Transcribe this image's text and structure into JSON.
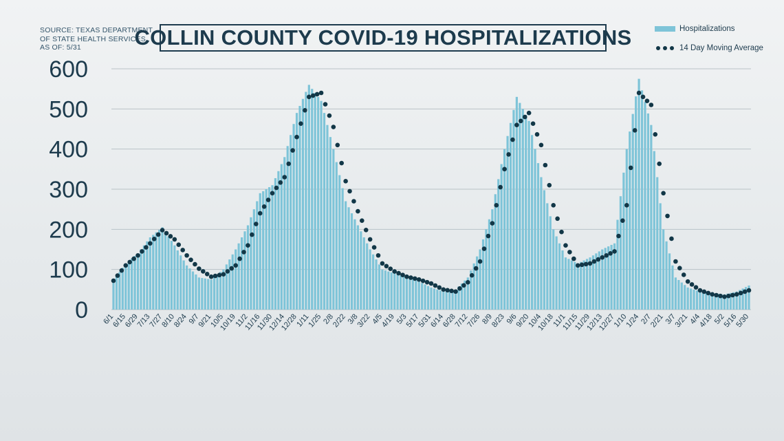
{
  "source_note": "SOURCE: TEXAS DEPARTMENT\nOF STATE HEALTH SERVICES\nAS OF: 5/31",
  "chart_data": {
    "type": "bar",
    "title": "COLLIN COUNTY COVID-19 HOSPITALIZATIONS",
    "ylim": [
      0,
      600
    ],
    "yticks": [
      "0",
      "100",
      "200",
      "300",
      "400",
      "500",
      "600"
    ],
    "grid": true,
    "legend_position": "top-right",
    "colors": {
      "bars": "#7ec4d8",
      "average": "#123747",
      "text": "#1d3b4d"
    },
    "categories": [
      "6/1",
      "6/15",
      "6/29",
      "7/13",
      "7/27",
      "8/10",
      "8/24",
      "9/7",
      "9/21",
      "10/5",
      "10/19",
      "11/2",
      "11/16",
      "11/30",
      "12/14",
      "12/28",
      "1/11",
      "1/25",
      "2/8",
      "2/22",
      "3/8",
      "3/22",
      "4/5",
      "4/19",
      "5/3",
      "5/17",
      "5/31",
      "6/14",
      "6/28",
      "7/12",
      "7/26",
      "8/9",
      "8/23",
      "9/6",
      "9/20",
      "10/4",
      "10/18",
      "11/1",
      "11/15",
      "11/29",
      "12/13",
      "12/27",
      "1/10",
      "1/24",
      "2/7",
      "2/21",
      "3/7",
      "3/21",
      "4/4",
      "4/18",
      "5/2",
      "5/16",
      "5/30"
    ],
    "series": [
      {
        "name": "Hospitalizations",
        "kind": "bar",
        "values": [
          72,
          115,
          140,
          180,
          205,
          160,
          110,
          80,
          75,
          100,
          150,
          210,
          290,
          310,
          380,
          490,
          560,
          520,
          400,
          270,
          210,
          150,
          100,
          90,
          80,
          70,
          55,
          45,
          50,
          80,
          150,
          250,
          400,
          530,
          470,
          330,
          200,
          130,
          115,
          130,
          150,
          165,
          400,
          575,
          460,
          200,
          80,
          55,
          45,
          40,
          38,
          45,
          60
        ]
      },
      {
        "name": "14 Day Moving Average",
        "kind": "dotted-line",
        "values": [
          72,
          110,
          135,
          165,
          198,
          175,
          135,
          102,
          82,
          88,
          110,
          160,
          240,
          290,
          330,
          430,
          530,
          540,
          455,
          320,
          245,
          175,
          115,
          95,
          82,
          75,
          65,
          50,
          45,
          68,
          120,
          215,
          350,
          460,
          490,
          410,
          260,
          160,
          110,
          115,
          130,
          145,
          260,
          540,
          510,
          290,
          120,
          70,
          48,
          38,
          32,
          38,
          48
        ]
      }
    ]
  }
}
